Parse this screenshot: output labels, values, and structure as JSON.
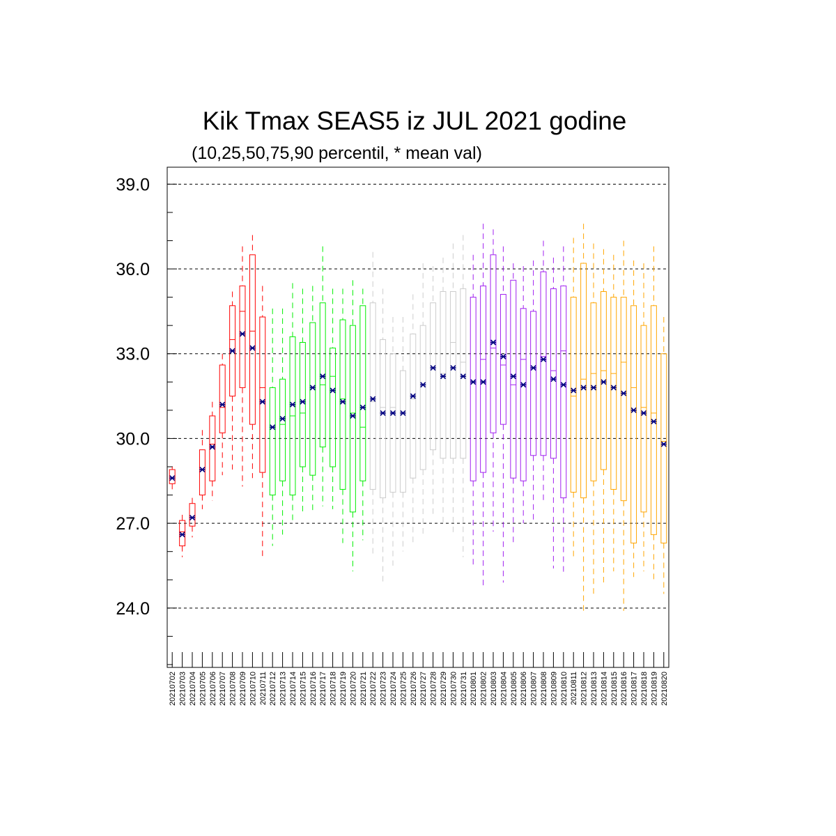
{
  "chart_data": {
    "type": "box",
    "title": "Kik Tmax SEAS5 iz JUL 2021 godine",
    "subtitle": "(10,25,50,75,90 percentil, * mean val)",
    "xlabel": "",
    "ylabel": "",
    "ylim": [
      21.9,
      39.6
    ],
    "yticks": [
      "24.0",
      "27.0",
      "30.0",
      "33.0",
      "36.0",
      "39.0"
    ],
    "ytick_values": [
      24,
      27,
      30,
      33,
      36,
      39
    ],
    "grid": "horizontal dashed at major ticks",
    "mean_marker": "*",
    "mean_color": "#000080",
    "categories": [
      "20210702",
      "20210703",
      "20210704",
      "20210705",
      "20210706",
      "20210707",
      "20210708",
      "20210709",
      "20210710",
      "20210711",
      "20210712",
      "20210713",
      "20210714",
      "20210715",
      "20210716",
      "20210717",
      "20210718",
      "20210719",
      "20210720",
      "20210721",
      "20210722",
      "20210723",
      "20210724",
      "20210725",
      "20210726",
      "20210727",
      "20210728",
      "20210729",
      "20210730",
      "20210731",
      "20210801",
      "20210802",
      "20210803",
      "20210804",
      "20210805",
      "20210806",
      "20210807",
      "20210808",
      "20210809",
      "20210810",
      "20210811",
      "20210812",
      "20210813",
      "20210814",
      "20210815",
      "20210816",
      "20210817",
      "20210818",
      "20210819",
      "20210820"
    ],
    "colors": [
      "#ff0000",
      "#ff0000",
      "#ff0000",
      "#ff0000",
      "#ff0000",
      "#ff0000",
      "#ff0000",
      "#ff0000",
      "#ff0000",
      "#ff0000",
      "#00ee00",
      "#00ee00",
      "#00ee00",
      "#00ee00",
      "#00ee00",
      "#00ee00",
      "#00ee00",
      "#00ee00",
      "#00ee00",
      "#00ee00",
      "#cccccc",
      "#cccccc",
      "#cccccc",
      "#cccccc",
      "#cccccc",
      "#cccccc",
      "#cccccc",
      "#cccccc",
      "#cccccc",
      "#cccccc",
      "#a020f0",
      "#a020f0",
      "#a020f0",
      "#a020f0",
      "#a020f0",
      "#a020f0",
      "#a020f0",
      "#a020f0",
      "#a020f0",
      "#a020f0",
      "#ffa500",
      "#ffa500",
      "#ffa500",
      "#ffa500",
      "#ffa500",
      "#ffa500",
      "#ffa500",
      "#ffa500",
      "#ffa500",
      "#ffa500"
    ],
    "p10": [
      28.2,
      25.8,
      26.5,
      27.5,
      27.8,
      28.7,
      28.9,
      28.3,
      28.6,
      25.8,
      26.2,
      26.6,
      27.0,
      27.4,
      27.4,
      27.6,
      27.5,
      26.3,
      25.3,
      26.4,
      25.8,
      24.9,
      25.5,
      26.0,
      26.3,
      26.6,
      27.3,
      26.9,
      26.6,
      25.8,
      25.5,
      24.8,
      26.7,
      24.9,
      26.2,
      27.0,
      27.0,
      27.8,
      25.4,
      25.2,
      25.7,
      23.8,
      24.5,
      24.8,
      25.3,
      23.9,
      25.1,
      25.3,
      24.9,
      24.5
    ],
    "p25": [
      28.4,
      26.2,
      26.9,
      28.0,
      28.5,
      30.2,
      31.5,
      31.8,
      30.5,
      28.8,
      28.0,
      28.5,
      28.0,
      29.0,
      28.7,
      29.7,
      29.0,
      28.2,
      27.4,
      28.5,
      28.2,
      27.9,
      28.1,
      28.1,
      28.6,
      28.9,
      29.6,
      29.3,
      29.3,
      29.3,
      28.5,
      28.8,
      30.2,
      30.5,
      28.6,
      28.5,
      29.4,
      29.4,
      29.3,
      27.9,
      28.1,
      27.9,
      28.5,
      28.9,
      28.2,
      27.8,
      26.3,
      27.4,
      26.6,
      26.3
    ],
    "p50": [
      28.6,
      26.7,
      27.2,
      28.9,
      29.8,
      31.1,
      33.5,
      34.5,
      33.8,
      31.8,
      30.4,
      30.5,
      30.8,
      30.9,
      31.8,
      31.9,
      32.2,
      31.4,
      30.9,
      30.4,
      31.3,
      31.1,
      31.1,
      30.9,
      31.4,
      31.9,
      32.5,
      32.3,
      33.4,
      32.7,
      32.0,
      32.8,
      33.2,
      32.6,
      31.9,
      32.8,
      32.5,
      32.9,
      32.4,
      33.1,
      31.5,
      32.1,
      32.3,
      32.4,
      32.3,
      32.7,
      31.8,
      31.1,
      30.9,
      29.9
    ],
    "p75": [
      28.9,
      27.1,
      27.7,
      29.6,
      30.8,
      32.6,
      34.7,
      35.4,
      36.5,
      34.3,
      31.8,
      32.1,
      33.6,
      33.4,
      34.1,
      34.8,
      33.2,
      34.2,
      34.0,
      34.7,
      34.8,
      33.5,
      33.0,
      32.4,
      33.7,
      34.0,
      34.8,
      35.2,
      35.2,
      35.3,
      35.0,
      35.4,
      36.5,
      35.1,
      35.6,
      34.6,
      34.5,
      35.9,
      35.3,
      35.4,
      35.0,
      36.2,
      34.8,
      35.2,
      35.0,
      35.0,
      34.7,
      34.0,
      34.7,
      33.0
    ],
    "p90": [
      29.0,
      27.3,
      27.9,
      30.3,
      31.3,
      33.0,
      35.2,
      36.8,
      37.2,
      35.4,
      34.6,
      34.6,
      35.5,
      35.3,
      35.4,
      36.8,
      35.3,
      35.3,
      35.6,
      35.3,
      36.6,
      35.3,
      34.3,
      34.3,
      35.1,
      36.2,
      36.1,
      36.4,
      36.9,
      37.2,
      36.5,
      37.6,
      37.4,
      36.8,
      36.2,
      36.1,
      36.3,
      37.0,
      36.4,
      36.8,
      37.1,
      37.6,
      36.9,
      36.7,
      36.5,
      37.0,
      36.3,
      36.2,
      36.8,
      34.3
    ],
    "mean": [
      28.6,
      26.6,
      27.2,
      28.9,
      29.7,
      31.2,
      33.1,
      33.7,
      33.2,
      31.3,
      30.4,
      30.7,
      31.2,
      31.3,
      31.8,
      32.2,
      31.7,
      31.3,
      30.8,
      31.1,
      31.4,
      30.9,
      30.9,
      30.9,
      31.5,
      31.9,
      32.5,
      32.2,
      32.5,
      32.2,
      32.0,
      32.0,
      33.4,
      32.9,
      32.2,
      31.9,
      32.5,
      32.8,
      32.1,
      31.9,
      31.7,
      31.8,
      31.8,
      32.0,
      31.8,
      31.6,
      31.0,
      30.9,
      30.6,
      29.8
    ]
  }
}
